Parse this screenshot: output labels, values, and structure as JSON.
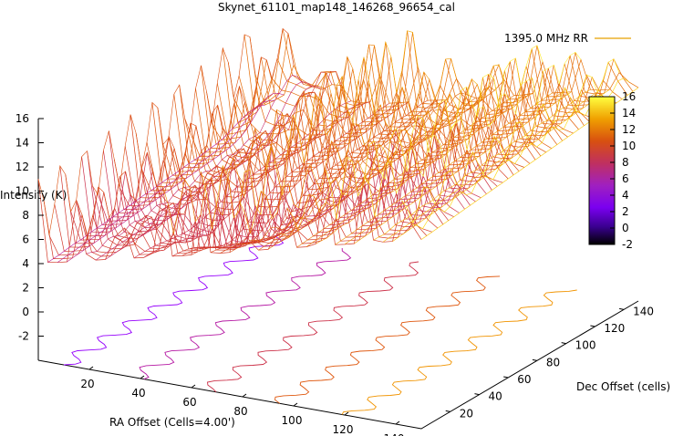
{
  "chart_data": {
    "type": "surface3d",
    "title": "Skynet_61101_map148_146268_96654_cal",
    "legend": {
      "label": "1395.0 MHz RR",
      "color": "#e8a000",
      "placement": "top-right"
    },
    "xlabel": "RA Offset (Cells=4.00')",
    "ylabel": "Dec Offset (cells)",
    "zlabel": "Intensity (K)",
    "xlim": [
      0,
      150
    ],
    "ylim": [
      0,
      150
    ],
    "zlim": [
      -4,
      16
    ],
    "x_ticks": [
      "20",
      "40",
      "60",
      "80",
      "100",
      "120",
      "140"
    ],
    "y_ticks": [
      "20",
      "40",
      "60",
      "80",
      "100",
      "120",
      "140"
    ],
    "z_ticks": [
      "-2",
      "0",
      "2",
      "4",
      "6",
      "8",
      "10",
      "12",
      "14",
      "16"
    ],
    "colorbar": {
      "range": [
        -2,
        16
      ],
      "ticks": [
        "-2",
        "0",
        "2",
        "4",
        "6",
        "8",
        "10",
        "12",
        "14",
        "16"
      ],
      "colormap": [
        "#000000",
        "#5a00c8",
        "#9a00ff",
        "#c02080",
        "#d84010",
        "#f09000",
        "#ffe000",
        "#ffff60"
      ]
    },
    "surface_description_values": {
      "background_level_K": [
        4,
        13
      ],
      "peak_K": 16,
      "min_K": -1
    }
  }
}
